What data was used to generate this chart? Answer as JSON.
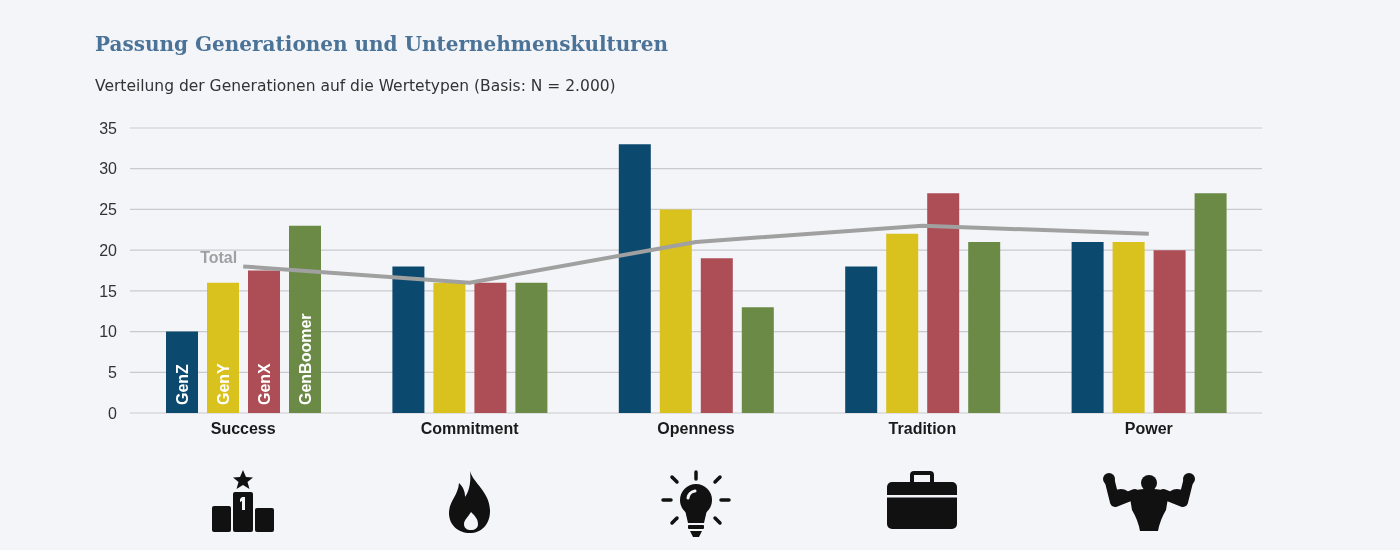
{
  "chart_data": {
    "type": "bar",
    "title": "Passung Generationen und Unternehmenskulturen",
    "subtitle": "Verteilung der Generationen auf die Wertetypen (Basis: N = 2.000)",
    "categories": [
      "Success",
      "Commitment",
      "Openness",
      "Tradition",
      "Power"
    ],
    "series": [
      {
        "name": "GenZ",
        "color": "#0b4a6e",
        "values": [
          10,
          18,
          33,
          18,
          21
        ]
      },
      {
        "name": "GenY",
        "color": "#d9c11e",
        "values": [
          16,
          16,
          25,
          22,
          21
        ]
      },
      {
        "name": "GenX",
        "color": "#ad4d55",
        "values": [
          17.5,
          16,
          19,
          27,
          20
        ]
      },
      {
        "name": "GenBoomer",
        "color": "#6a8a45",
        "values": [
          23,
          16,
          13,
          21,
          27
        ]
      },
      {
        "name": "Total",
        "type": "line",
        "color": "#a0a0a0",
        "values": [
          18,
          16,
          21,
          23,
          22
        ]
      }
    ],
    "ylim": [
      0,
      35
    ],
    "yticks": [
      0,
      5,
      10,
      15,
      20,
      25,
      30,
      35
    ],
    "grid": "y",
    "marker": "none"
  }
}
